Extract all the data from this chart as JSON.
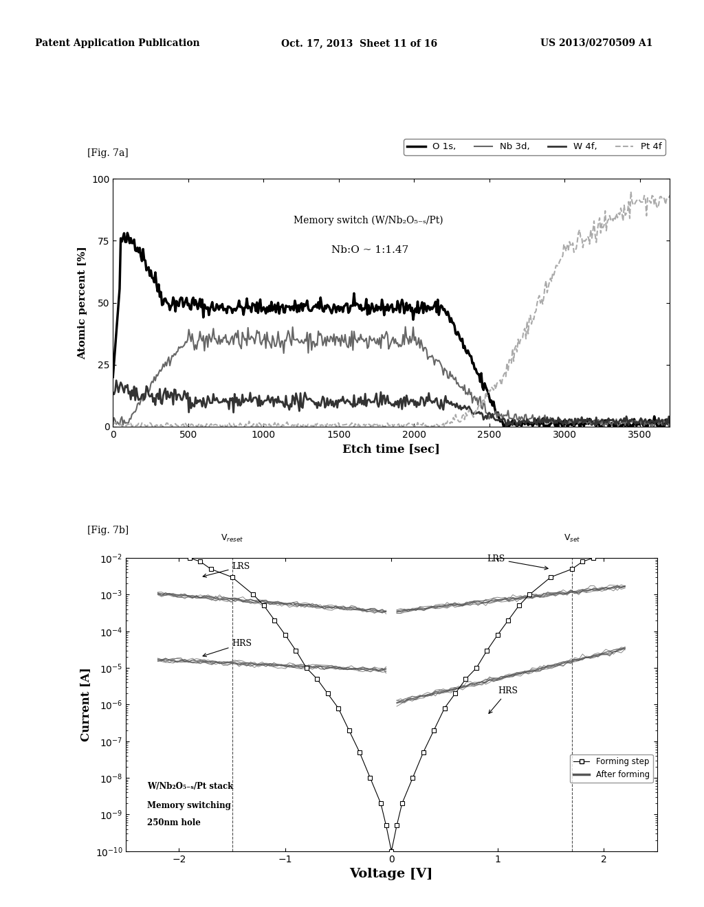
{
  "header_left": "Patent Application Publication",
  "header_mid": "Oct. 17, 2013  Sheet 11 of 16",
  "header_right": "US 2013/0270509 A1",
  "fig7a_label": "[Fig. 7a]",
  "fig7b_label": "[Fig. 7b]",
  "fig7a": {
    "xlabel": "Etch time [sec]",
    "ylabel": "Atomic percent [%]",
    "title": "Memory switch (W/Nb₂O₅₋ₛ/Pt)",
    "subtitle": "Nb:O ~ 1:1.47",
    "xlim": [
      0,
      3700
    ],
    "ylim": [
      0,
      100
    ],
    "xticks": [
      0,
      500,
      1000,
      1500,
      2000,
      2500,
      3000,
      3500
    ],
    "yticks": [
      0,
      25,
      50,
      75,
      100
    ],
    "legend": [
      "O 1s,",
      "Nb 3d,",
      "W 4f,",
      "Pt 4f"
    ]
  },
  "fig7b": {
    "xlabel": "Voltage [V]",
    "ylabel": "Current [A]",
    "xlim": [
      -2.5,
      2.5
    ],
    "xticks": [
      -2,
      -1,
      0,
      1,
      2
    ],
    "vreset_x": -1.5,
    "vset_x": 1.7,
    "text_line1": "W/Nb₂O₅₋ₛ/Pt stack",
    "text_line2": "Memory switching",
    "text_line3": "250nm hole",
    "legend1": "Forming step",
    "legend2": "After forming"
  },
  "bg_color": "#ffffff"
}
